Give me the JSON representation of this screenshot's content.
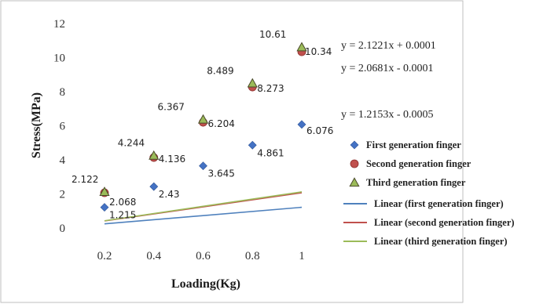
{
  "chart_data": {
    "type": "scatter",
    "title": "",
    "xlabel": "Loading(Kg)",
    "ylabel": "Stress(MPa)",
    "x": [
      0.2,
      0.4,
      0.6,
      0.8,
      1
    ],
    "x_tick_labels": [
      "0.2",
      "0.4",
      "0.6",
      "0.8",
      "1"
    ],
    "ylim": [
      0,
      12
    ],
    "y_ticks": [
      0,
      2,
      4,
      6,
      8,
      10,
      12
    ],
    "grid": false,
    "legend_position": "right",
    "series": [
      {
        "name": "First generation finger",
        "marker": "diamond",
        "color": "#4472c4",
        "values": [
          1.215,
          2.43,
          3.645,
          4.861,
          6.076
        ],
        "labels": [
          "1.215",
          "2.43",
          "3.645",
          "4.861",
          "6.076"
        ]
      },
      {
        "name": "Second generation finger",
        "marker": "circle",
        "color": "#c0504d",
        "values": [
          2.068,
          4.136,
          6.204,
          8.273,
          10.34
        ],
        "labels": [
          "2.068",
          "4.136",
          "6.204",
          "8.273",
          "10.34"
        ]
      },
      {
        "name": "Third generation finger",
        "marker": "triangle",
        "color": "#9bbb59",
        "values": [
          2.122,
          4.244,
          6.367,
          8.489,
          10.61
        ],
        "labels": [
          "2.122",
          "4.244",
          "6.367",
          "8.489",
          "10.61"
        ]
      }
    ],
    "trendlines": [
      {
        "name": "Linear (first generation finger)",
        "color": "#4f81bd",
        "slope": 1.2153,
        "intercept": -0.0005,
        "equation": "y = 1.2153x - 0.0005"
      },
      {
        "name": "Linear (second generation finger)",
        "color": "#c0504d",
        "slope": 2.0681,
        "intercept": -0.0001,
        "equation": "y = 2.0681x - 0.0001"
      },
      {
        "name": "Linear (third generation finger)",
        "color": "#9bbb59",
        "slope": 2.1221,
        "intercept": 0.0001,
        "equation": "y = 2.1221x + 0.0001"
      }
    ]
  }
}
